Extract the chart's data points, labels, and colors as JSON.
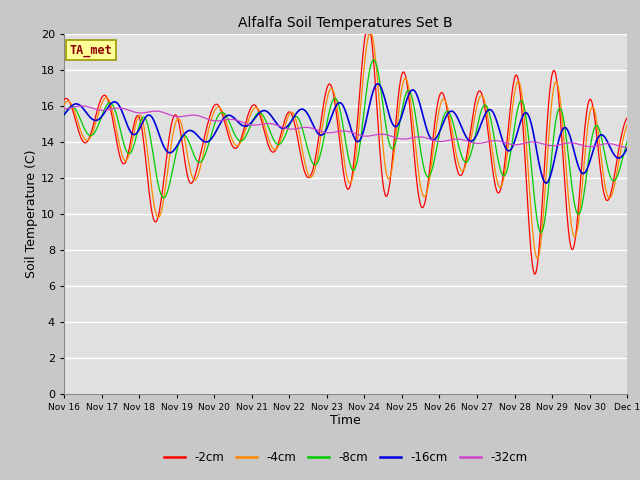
{
  "title": "Alfalfa Soil Temperatures Set B",
  "xlabel": "Time",
  "ylabel": "Soil Temperature (C)",
  "ylim": [
    0,
    20
  ],
  "background_color": "#e0e0e0",
  "fig_facecolor": "#d8d8d8",
  "grid_color": "#ffffff",
  "ta_met_label": "TA_met",
  "legend_entries": [
    "-2cm",
    "-4cm",
    "-8cm",
    "-16cm",
    "-32cm"
  ],
  "line_colors": [
    "#ff0000",
    "#ff8800",
    "#00cc00",
    "#0000dd",
    "#cc44cc"
  ],
  "xtick_labels": [
    "Nov 16",
    "Nov 17",
    "Nov 18",
    "Nov 19",
    "Nov 20",
    "Nov 21",
    "Nov 22",
    "Nov 23",
    "Nov 24",
    "Nov 25",
    "Nov 26",
    "Nov 27",
    "Nov 28",
    "Nov 29",
    "Nov 30",
    "Dec 1"
  ],
  "ytick_values": [
    0,
    2,
    4,
    6,
    8,
    10,
    12,
    14,
    16,
    18,
    20
  ],
  "n_days": 15,
  "pts_per_day": 48
}
